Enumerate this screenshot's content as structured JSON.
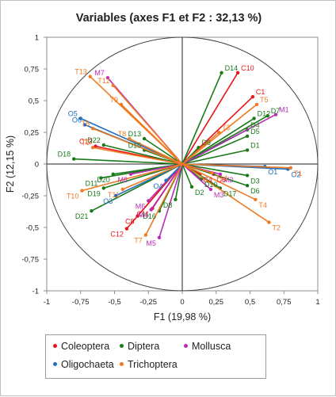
{
  "chart_data": {
    "type": "scatter",
    "title": "Variables (axes F1 et F2 : 32,13 %)",
    "xlabel": "F1 (19,98 %)",
    "ylabel": "F2 (12,15 %)",
    "xlim": [
      -1,
      1
    ],
    "ylim": [
      -1,
      1
    ],
    "x_ticks": [
      "-1",
      "-0,75",
      "-0,5",
      "-0,25",
      "0",
      "0,25",
      "0,5",
      "0,75",
      "1"
    ],
    "y_ticks": [
      "-1",
      "-0,75",
      "-0,5",
      "-0,25",
      "0",
      "0,25",
      "0,5",
      "0,75",
      "1"
    ],
    "unit_circle": true,
    "vectors_from_origin": true,
    "legend_position": "bottom",
    "series": [
      {
        "name": "Coleoptera",
        "color": "#e8141a",
        "points": [
          {
            "label": "C10",
            "x": 0.41,
            "y": 0.72
          },
          {
            "label": "C1",
            "x": 0.52,
            "y": 0.53
          },
          {
            "label": "C13",
            "x": -0.64,
            "y": 0.14
          },
          {
            "label": "C8",
            "x": -0.33,
            "y": -0.41
          },
          {
            "label": "C12",
            "x": -0.41,
            "y": -0.51
          },
          {
            "label": "C11",
            "x": -0.22,
            "y": -0.35
          },
          {
            "label": "C5",
            "x": 0.23,
            "y": -0.08
          },
          {
            "label": "C4",
            "x": 0.13,
            "y": -0.08
          }
        ]
      },
      {
        "name": "Diptera",
        "color": "#1a7a1a",
        "points": [
          {
            "label": "D14",
            "x": 0.29,
            "y": 0.72
          },
          {
            "label": "D12",
            "x": 0.53,
            "y": 0.36
          },
          {
            "label": "D7",
            "x": 0.63,
            "y": 0.38
          },
          {
            "label": "D4",
            "x": 0.48,
            "y": 0.27
          },
          {
            "label": "D5",
            "x": 0.48,
            "y": 0.22
          },
          {
            "label": "D1",
            "x": 0.48,
            "y": 0.11
          },
          {
            "label": "D3",
            "x": 0.48,
            "y": -0.09
          },
          {
            "label": "D6",
            "x": 0.48,
            "y": -0.17
          },
          {
            "label": "D17",
            "x": 0.28,
            "y": -0.19
          },
          {
            "label": "D10",
            "x": 0.14,
            "y": -0.12
          },
          {
            "label": "D2",
            "x": 0.07,
            "y": -0.18
          },
          {
            "label": "D8",
            "x": -0.05,
            "y": -0.28
          },
          {
            "label": "D9",
            "x": 0.12,
            "y": 0.13
          },
          {
            "label": "D16",
            "x": -0.17,
            "y": -0.37
          },
          {
            "label": "D19",
            "x": -0.58,
            "y": -0.19
          },
          {
            "label": "D20",
            "x": -0.51,
            "y": -0.08
          },
          {
            "label": "D11",
            "x": -0.6,
            "y": -0.11
          },
          {
            "label": "D21",
            "x": -0.67,
            "y": -0.37
          },
          {
            "label": "D18",
            "x": -0.8,
            "y": 0.04
          },
          {
            "label": "D22",
            "x": -0.58,
            "y": 0.15
          },
          {
            "label": "D13",
            "x": -0.28,
            "y": 0.2
          },
          {
            "label": "D15",
            "x": -0.28,
            "y": 0.11
          }
        ]
      },
      {
        "name": "Mollusca",
        "color": "#b82db8",
        "points": [
          {
            "label": "M7",
            "x": -0.55,
            "y": 0.68
          },
          {
            "label": "M1",
            "x": 0.69,
            "y": 0.39
          },
          {
            "label": "M2",
            "x": 0.28,
            "y": -0.08
          },
          {
            "label": "M3",
            "x": 0.21,
            "y": -0.2
          },
          {
            "label": "M8",
            "x": -0.38,
            "y": -0.08
          },
          {
            "label": "M6",
            "x": -0.25,
            "y": -0.29
          },
          {
            "label": "M4",
            "x": -0.23,
            "y": -0.36
          },
          {
            "label": "M5",
            "x": -0.17,
            "y": -0.58
          }
        ]
      },
      {
        "name": "Oligochaeta",
        "color": "#1f6ebf",
        "points": [
          {
            "label": "O5",
            "x": -0.75,
            "y": 0.36
          },
          {
            "label": "O6",
            "x": -0.72,
            "y": 0.31
          },
          {
            "label": "O3",
            "x": -0.49,
            "y": -0.25
          },
          {
            "label": "O2",
            "x": 0.78,
            "y": -0.04
          },
          {
            "label": "O1",
            "x": 0.61,
            "y": -0.02
          },
          {
            "label": "O4",
            "x": -0.12,
            "y": -0.13
          }
        ]
      },
      {
        "name": "Trichoptera",
        "color": "#f07a22",
        "points": [
          {
            "label": "T13",
            "x": -0.68,
            "y": 0.69
          },
          {
            "label": "T12",
            "x": -0.51,
            "y": 0.62
          },
          {
            "label": "T8",
            "x": -0.66,
            "y": 0.28
          },
          {
            "label": "T9",
            "x": -0.45,
            "y": 0.47
          },
          {
            "label": "T6",
            "x": -0.66,
            "y": 0.13
          },
          {
            "label": "T8",
            "x": -0.39,
            "y": 0.2
          },
          {
            "label": "T10",
            "x": -0.74,
            "y": -0.21
          },
          {
            "label": "T11",
            "x": -0.44,
            "y": -0.2
          },
          {
            "label": "T3",
            "x": 0.27,
            "y": 0.25
          },
          {
            "label": "T5",
            "x": 0.55,
            "y": 0.47
          },
          {
            "label": "T1",
            "x": 0.8,
            "y": -0.03
          },
          {
            "label": "T4",
            "x": 0.54,
            "y": -0.28
          },
          {
            "label": "T2",
            "x": 0.64,
            "y": -0.46
          },
          {
            "label": "T7",
            "x": -0.27,
            "y": -0.56
          },
          {
            "label": "T14",
            "x": 0.22,
            "y": -0.07
          }
        ]
      }
    ]
  }
}
